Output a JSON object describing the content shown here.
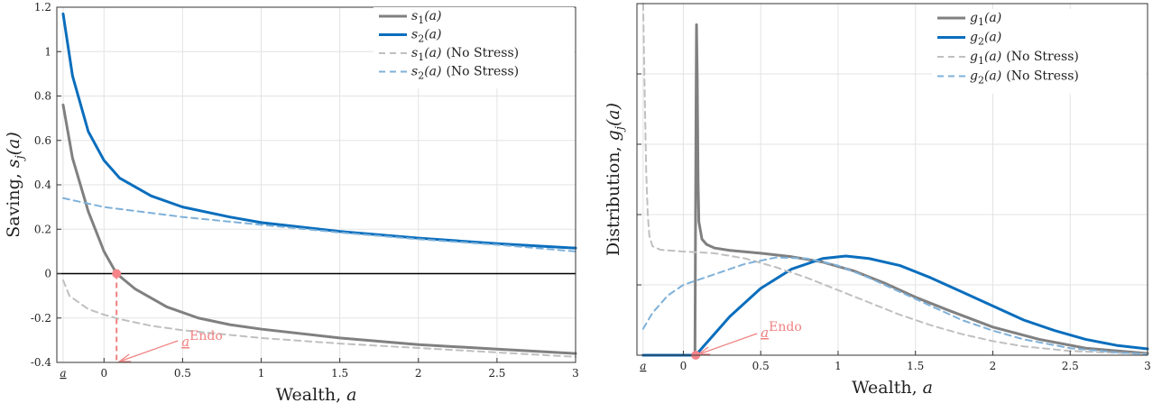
{
  "chart_data": [
    {
      "type": "line",
      "xlabel_text": "Wealth,",
      "xlabel_var": "a",
      "ylabel_text": "Saving,",
      "ylabel_var": "s",
      "ylabel_sub": "j",
      "ylabel_arg": "(a)",
      "xlim": [
        -0.3,
        3
      ],
      "ylim": [
        -0.4,
        1.2
      ],
      "xticks": [
        0,
        0.5,
        1,
        1.5,
        2,
        2.5,
        3
      ],
      "xtick_labels": [
        "0",
        "0.5",
        "1",
        "1.5",
        "2",
        "2.5",
        "3"
      ],
      "yticks": [
        -0.4,
        -0.2,
        0,
        0.2,
        0.4,
        0.6,
        0.8,
        1,
        1.2
      ],
      "ytick_labels": [
        "-0.4",
        "-0.2",
        "0",
        "0.2",
        "0.4",
        "0.6",
        "0.8",
        "1",
        "1.2"
      ],
      "amin_label": "a",
      "amin_x": -0.26,
      "zero_line": 0,
      "grid": true,
      "legend_position": "top-right",
      "annotation": {
        "var": "a",
        "sup": "Endo",
        "x": 0.08,
        "y": 0
      },
      "series": [
        {
          "name": "s",
          "sub": "1",
          "arg": "(a)",
          "tag": "",
          "color": "#808080",
          "dash": false,
          "x": [
            -0.26,
            -0.2,
            -0.1,
            0,
            0.08,
            0.2,
            0.4,
            0.6,
            0.8,
            1,
            1.5,
            2,
            2.5,
            3
          ],
          "y": [
            0.76,
            0.52,
            0.28,
            0.1,
            0,
            -0.07,
            -0.15,
            -0.2,
            -0.23,
            -0.25,
            -0.29,
            -0.32,
            -0.34,
            -0.36
          ]
        },
        {
          "name": "s",
          "sub": "2",
          "arg": "(a)",
          "tag": "",
          "color": "#0a6ebd",
          "dash": false,
          "x": [
            -0.26,
            -0.2,
            -0.1,
            0,
            0.1,
            0.2,
            0.3,
            0.5,
            0.8,
            1,
            1.5,
            2,
            2.5,
            3
          ],
          "y": [
            1.17,
            0.89,
            0.64,
            0.51,
            0.43,
            0.39,
            0.35,
            0.3,
            0.255,
            0.23,
            0.19,
            0.16,
            0.135,
            0.115
          ]
        },
        {
          "name": "s",
          "sub": "1",
          "arg": "(a)",
          "tag": "(No Stress)",
          "color": "#c0c0c0",
          "dash": true,
          "x": [
            -0.26,
            -0.22,
            -0.1,
            0,
            0.1,
            0.3,
            0.5,
            1,
            1.5,
            2,
            2.5,
            3
          ],
          "y": [
            -0.03,
            -0.1,
            -0.16,
            -0.185,
            -0.205,
            -0.235,
            -0.255,
            -0.29,
            -0.315,
            -0.335,
            -0.355,
            -0.375
          ]
        },
        {
          "name": "s",
          "sub": "2",
          "arg": "(a)",
          "tag": "(No Stress)",
          "color": "#7fb1d9",
          "dash": true,
          "x": [
            -0.26,
            0,
            0.5,
            1,
            1.5,
            2,
            2.5,
            3
          ],
          "y": [
            0.34,
            0.3,
            0.255,
            0.22,
            0.185,
            0.155,
            0.13,
            0.1
          ]
        }
      ]
    },
    {
      "type": "line",
      "xlabel_text": "Wealth,",
      "xlabel_var": "a",
      "ylabel_text": "Distribution,",
      "ylabel_var": "g",
      "ylabel_sub": "j",
      "ylabel_arg": "(a)",
      "xlim": [
        -0.3,
        3
      ],
      "ylim": [
        0,
        1
      ],
      "xticks": [
        0,
        0.5,
        1,
        1.5,
        2,
        2.5,
        3
      ],
      "xtick_labels": [
        "0",
        "0.5",
        "1",
        "1.5",
        "2",
        "2.5",
        "3"
      ],
      "yticks_unlabeled": [
        0.2,
        0.4,
        0.6,
        0.8
      ],
      "amin_label": "a",
      "amin_x": -0.26,
      "grid": true,
      "legend_position": "top-right",
      "annotation": {
        "var": "a",
        "sup": "Endo",
        "x": 0.08,
        "y": 0
      },
      "series": [
        {
          "name": "g",
          "sub": "1",
          "arg": "(a)",
          "tag": "",
          "color": "#808080",
          "dash": false,
          "x": [
            -0.26,
            0.075,
            0.078,
            0.082,
            0.085,
            0.09,
            0.095,
            0.1,
            0.12,
            0.15,
            0.2,
            0.3,
            0.5,
            0.7,
            0.9,
            1.1,
            1.3,
            1.5,
            1.7,
            2,
            2.3,
            2.6,
            3
          ],
          "y": [
            0,
            0,
            0.3,
            0.7,
            0.94,
            0.78,
            0.5,
            0.38,
            0.33,
            0.315,
            0.305,
            0.298,
            0.29,
            0.28,
            0.265,
            0.24,
            0.205,
            0.165,
            0.13,
            0.08,
            0.045,
            0.02,
            0.005
          ]
        },
        {
          "name": "g",
          "sub": "2",
          "arg": "(a)",
          "tag": "",
          "color": "#0a6ebd",
          "dash": false,
          "x": [
            -0.26,
            0.08,
            0.1,
            0.2,
            0.3,
            0.5,
            0.7,
            0.9,
            1.05,
            1.2,
            1.4,
            1.6,
            1.8,
            2,
            2.2,
            2.4,
            2.6,
            2.8,
            3
          ],
          "y": [
            0,
            0,
            0.01,
            0.06,
            0.11,
            0.19,
            0.245,
            0.275,
            0.282,
            0.275,
            0.255,
            0.22,
            0.18,
            0.14,
            0.1,
            0.07,
            0.045,
            0.028,
            0.018
          ]
        },
        {
          "name": "g",
          "sub": "1",
          "arg": "(a)",
          "tag": "(No Stress)",
          "color": "#c0c0c0",
          "dash": true,
          "x": [
            -0.26,
            -0.25,
            -0.24,
            -0.23,
            -0.22,
            -0.2,
            -0.15,
            -0.1,
            0,
            0.2,
            0.4,
            0.6,
            0.8,
            1,
            1.2,
            1.4,
            1.6,
            1.8,
            2,
            2.2,
            2.5,
            3
          ],
          "y": [
            1,
            0.75,
            0.52,
            0.4,
            0.34,
            0.31,
            0.3,
            0.298,
            0.295,
            0.29,
            0.275,
            0.25,
            0.22,
            0.185,
            0.15,
            0.115,
            0.085,
            0.06,
            0.04,
            0.025,
            0.012,
            0.003
          ]
        },
        {
          "name": "g",
          "sub": "2",
          "arg": "(a)",
          "tag": "(No Stress)",
          "color": "#7fb1d9",
          "dash": true,
          "x": [
            -0.26,
            -0.2,
            -0.1,
            0,
            0.1,
            0.2,
            0.4,
            0.6,
            0.8,
            1,
            1.2,
            1.4,
            1.6,
            1.8,
            2,
            2.2,
            2.5,
            2.8,
            3
          ],
          "y": [
            0.075,
            0.12,
            0.17,
            0.2,
            0.215,
            0.23,
            0.26,
            0.278,
            0.275,
            0.255,
            0.22,
            0.18,
            0.14,
            0.1,
            0.07,
            0.045,
            0.02,
            0.008,
            0.003
          ]
        }
      ]
    }
  ]
}
